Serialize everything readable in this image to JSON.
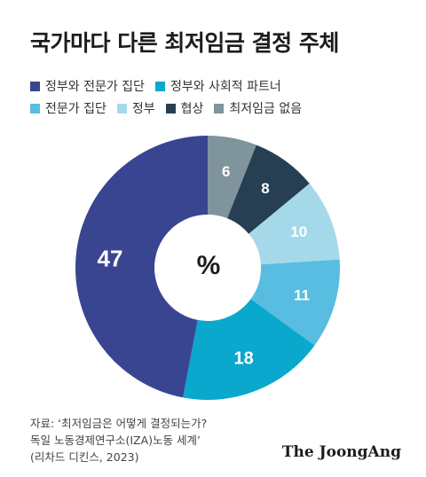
{
  "title": "국가마다 다른 최저임금 결정 주체",
  "chart_data": {
    "type": "pie",
    "unit": "%",
    "categories": [
      "정부와 전문가 집단",
      "정부와 사회적 파트너",
      "전문가 집단",
      "정부",
      "협상",
      "최저임금 없음"
    ],
    "values": [
      47,
      18,
      11,
      10,
      8,
      6
    ],
    "colors": [
      "#3a4592",
      "#0aa8cd",
      "#58bde0",
      "#a5d9ea",
      "#263f52",
      "#7f949c"
    ]
  },
  "source": {
    "line1": "자료: ‘최저임금은 어떻게 결정되는가?",
    "line2": "독일 노동경제연구소(IZA)노동 세계’",
    "line3": "(리차드 디킨스, 2023)"
  },
  "brand": "The JoongAng"
}
